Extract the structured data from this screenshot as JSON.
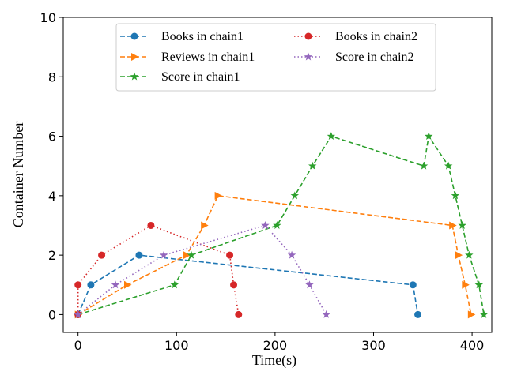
{
  "chart_data": {
    "type": "line",
    "title": "",
    "xlabel": "Time(s)",
    "ylabel": "Container Number",
    "xlim": [
      -15,
      420
    ],
    "ylim": [
      -0.6,
      10
    ],
    "xticks": [
      0,
      100,
      200,
      300,
      400
    ],
    "yticks": [
      0,
      2,
      4,
      6,
      8,
      10
    ],
    "grid": false,
    "legend_position": "upper center",
    "series": [
      {
        "name": "Books in chain1",
        "color": "#1f77b4",
        "linestyle": "dashed",
        "marker": "circle",
        "x": [
          0,
          13,
          62,
          340,
          345
        ],
        "y": [
          0,
          1,
          2,
          1,
          0
        ]
      },
      {
        "name": "Reviews in chain1",
        "color": "#ff7f0e",
        "linestyle": "dashed",
        "marker": "triangle-right",
        "x": [
          0,
          50,
          110,
          128,
          142,
          380,
          386,
          393,
          399
        ],
        "y": [
          0,
          1,
          2,
          3,
          4,
          3,
          2,
          1,
          0
        ]
      },
      {
        "name": "Score in chain1",
        "color": "#2ca02c",
        "linestyle": "dashed",
        "marker": "star",
        "x": [
          0,
          98,
          115,
          202,
          220,
          238,
          257,
          351,
          356,
          376,
          383,
          390,
          397,
          407,
          412
        ],
        "y": [
          0,
          1,
          2,
          3,
          4,
          5,
          6,
          5,
          6,
          5,
          4,
          3,
          2,
          1,
          0
        ]
      },
      {
        "name": "Books in chain2",
        "color": "#d62728",
        "linestyle": "dotted",
        "marker": "circle",
        "x": [
          0,
          0,
          24,
          74,
          154,
          158,
          163
        ],
        "y": [
          0,
          1,
          2,
          3,
          2,
          1,
          0
        ]
      },
      {
        "name": "Score in chain2",
        "color": "#9467bd",
        "linestyle": "dotted",
        "marker": "star",
        "x": [
          0,
          38,
          87,
          190,
          217,
          235,
          252
        ],
        "y": [
          0,
          1,
          2,
          3,
          2,
          1,
          0
        ]
      }
    ]
  }
}
